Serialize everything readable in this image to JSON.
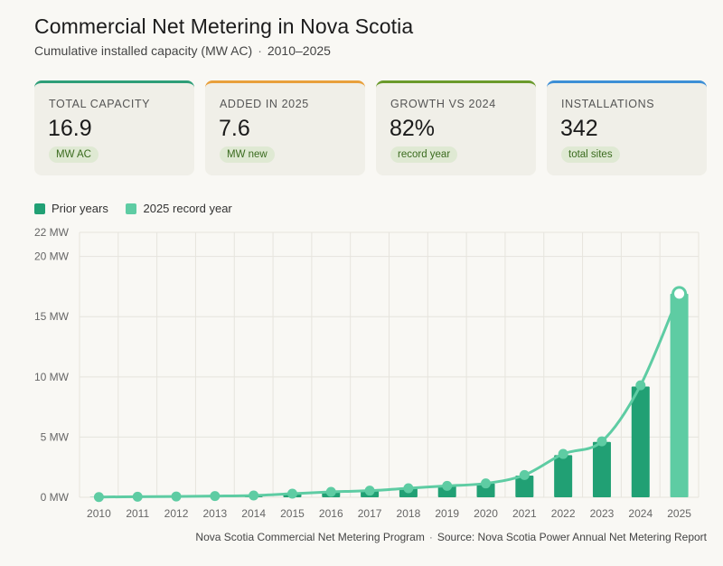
{
  "header": {
    "title": "Commercial Net Metering in Nova Scotia",
    "subtitle": "Cumulative installed capacity (MW AC)",
    "range": "2010–2025"
  },
  "kpis": [
    {
      "label": "TOTAL CAPACITY",
      "value": "16.9",
      "badge": "MW AC",
      "accent": "#2e9e78"
    },
    {
      "label": "ADDED IN 2025",
      "value": "7.6",
      "badge": "MW new",
      "accent": "#e8a03c"
    },
    {
      "label": "GROWTH VS 2024",
      "value": "82%",
      "badge": "record year",
      "accent": "#6a9a2c"
    },
    {
      "label": "INSTALLATIONS",
      "value": "342",
      "badge": "total sites",
      "accent": "#3d8fd6"
    }
  ],
  "legend": {
    "prior": {
      "label": "Prior years",
      "color": "#21a074"
    },
    "record": {
      "label": "2025 record year",
      "color": "#5ecca3"
    }
  },
  "footer": {
    "program": "Nova Scotia Commercial Net Metering Program",
    "source": "Source: Nova Scotia Power Annual Net Metering Report"
  },
  "chart_data": {
    "type": "bar",
    "categories": [
      "2010",
      "2011",
      "2012",
      "2013",
      "2014",
      "2015",
      "2016",
      "2017",
      "2018",
      "2019",
      "2020",
      "2021",
      "2022",
      "2023",
      "2024",
      "2025"
    ],
    "values": [
      0.02,
      0.05,
      0.07,
      0.1,
      0.15,
      0.3,
      0.45,
      0.55,
      0.75,
      0.95,
      1.15,
      1.8,
      3.5,
      4.6,
      9.2,
      16.9
    ],
    "line": [
      0.02,
      0.05,
      0.07,
      0.1,
      0.15,
      0.3,
      0.45,
      0.55,
      0.75,
      0.95,
      1.15,
      1.85,
      3.6,
      4.65,
      9.3,
      16.9
    ],
    "ylabel_ticks": [
      "0 MW",
      "5 MW",
      "10 MW",
      "15 MW",
      "20 MW",
      "22 MW"
    ],
    "ylim": [
      0,
      22
    ],
    "grid": true,
    "colors": {
      "bar": "#21a074",
      "highlight": "#5ecca3",
      "line": "#5ecca3"
    }
  }
}
